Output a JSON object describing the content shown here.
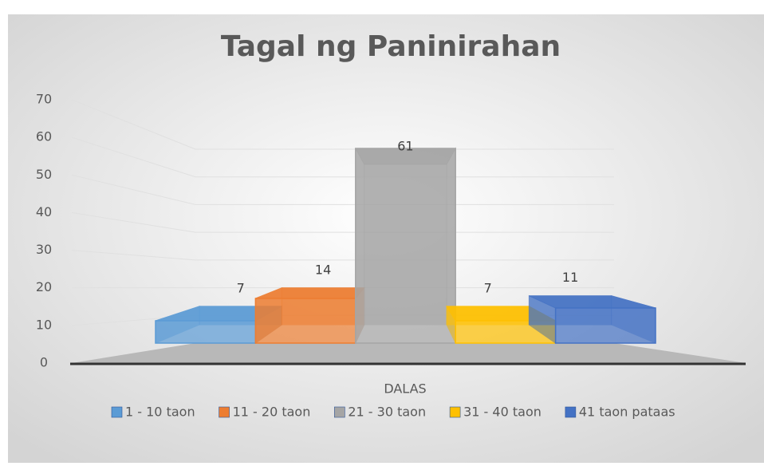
{
  "chart_data": {
    "type": "bar",
    "title": "Tagal ng Paninirahan",
    "x_label": "DALAS",
    "categories": [
      "DALAS"
    ],
    "series": [
      {
        "name": "1 - 10 taon",
        "color": "#5b9bd5",
        "values": [
          7
        ]
      },
      {
        "name": "11 - 20 taon",
        "color": "#ed7d31",
        "values": [
          14
        ]
      },
      {
        "name": "21 - 30 taon",
        "color": "#a5a5a5",
        "values": [
          61
        ]
      },
      {
        "name": "31 - 40 taon",
        "color": "#ffc000",
        "values": [
          7
        ]
      },
      {
        "name": "41 taon pataas",
        "color": "#4472c4",
        "values": [
          11
        ]
      }
    ],
    "ylim": [
      0,
      70
    ],
    "yticks": [
      0,
      10,
      20,
      30,
      40,
      50,
      60,
      70
    ],
    "grid": true,
    "legend": "bottom"
  }
}
